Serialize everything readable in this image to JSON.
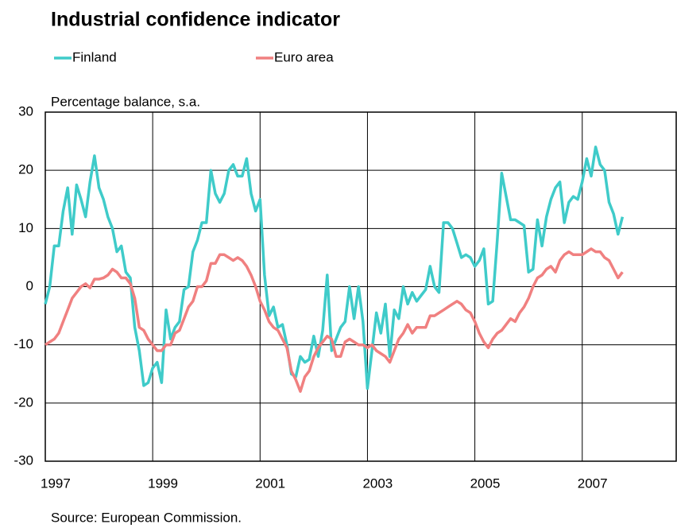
{
  "chart_data": {
    "type": "line",
    "title": "Industrial confidence indicator",
    "y_label": "Percentage balance, s.a.",
    "source": "Source: European Commission.",
    "x": [
      "1997-01",
      "1997-02",
      "1997-03",
      "1997-04",
      "1997-05",
      "1997-06",
      "1997-07",
      "1997-08",
      "1997-09",
      "1997-10",
      "1997-11",
      "1997-12",
      "1998-01",
      "1998-02",
      "1998-03",
      "1998-04",
      "1998-05",
      "1998-06",
      "1998-07",
      "1998-08",
      "1998-09",
      "1998-10",
      "1998-11",
      "1998-12",
      "1999-01",
      "1999-02",
      "1999-03",
      "1999-04",
      "1999-05",
      "1999-06",
      "1999-07",
      "1999-08",
      "1999-09",
      "1999-10",
      "1999-11",
      "1999-12",
      "2000-01",
      "2000-02",
      "2000-03",
      "2000-04",
      "2000-05",
      "2000-06",
      "2000-07",
      "2000-08",
      "2000-09",
      "2000-10",
      "2000-11",
      "2000-12",
      "2001-01",
      "2001-02",
      "2001-03",
      "2001-04",
      "2001-05",
      "2001-06",
      "2001-07",
      "2001-08",
      "2001-09",
      "2001-10",
      "2001-11",
      "2001-12",
      "2002-01",
      "2002-02",
      "2002-03",
      "2002-04",
      "2002-05",
      "2002-06",
      "2002-07",
      "2002-08",
      "2002-09",
      "2002-10",
      "2002-11",
      "2002-12",
      "2003-01",
      "2003-02",
      "2003-03",
      "2003-04",
      "2003-05",
      "2003-06",
      "2003-07",
      "2003-08",
      "2003-09",
      "2003-10",
      "2003-11",
      "2003-12",
      "2004-01",
      "2004-02",
      "2004-03",
      "2004-04",
      "2004-05",
      "2004-06",
      "2004-07",
      "2004-08",
      "2004-09",
      "2004-10",
      "2004-11",
      "2004-12",
      "2005-01",
      "2005-02",
      "2005-03",
      "2005-04",
      "2005-05",
      "2005-06",
      "2005-07",
      "2005-08",
      "2005-09",
      "2005-10",
      "2005-11",
      "2005-12",
      "2006-01",
      "2006-02",
      "2006-03",
      "2006-04",
      "2006-05",
      "2006-06",
      "2006-07",
      "2006-08",
      "2006-09",
      "2006-10",
      "2006-11",
      "2006-12",
      "2007-01",
      "2007-02",
      "2007-03",
      "2007-04",
      "2007-05",
      "2007-06",
      "2007-07",
      "2007-08",
      "2007-09",
      "2007-10"
    ],
    "series": [
      {
        "name": "Finland",
        "color": "#3fcbc9",
        "values": [
          -3,
          0,
          7,
          7,
          13,
          17,
          9,
          17.5,
          15,
          12,
          18,
          22.5,
          17,
          15,
          12,
          10,
          6,
          7,
          2.5,
          1.5,
          -7,
          -11,
          -17,
          -16.5,
          -14,
          -13,
          -16.5,
          -4,
          -9,
          -7,
          -6,
          -0.5,
          0,
          6,
          8,
          11,
          11,
          20,
          16,
          14.5,
          16,
          20,
          21,
          19,
          19,
          22,
          16,
          13,
          15,
          2,
          -5,
          -3.5,
          -7,
          -6.5,
          -10,
          -15,
          -15.5,
          -12,
          -13,
          -12.5,
          -8.5,
          -12,
          -7.5,
          2,
          -11,
          -9,
          -7,
          -6,
          0,
          -5.5,
          0,
          -6,
          -17.5,
          -11,
          -4.5,
          -8,
          -3,
          -12,
          -4,
          -5.5,
          0,
          -3,
          -1,
          -2.5,
          -1.5,
          -0.5,
          3.5,
          0,
          -1,
          11,
          11,
          10,
          7.5,
          5,
          5.5,
          5,
          3.5,
          4.5,
          6.5,
          -3,
          -2.5,
          8,
          19.5,
          15.5,
          11.5,
          11.5,
          11,
          10.5,
          2.5,
          3,
          11.5,
          7,
          12,
          15,
          17,
          18,
          11,
          14.5,
          15.5,
          15,
          18,
          22,
          19,
          24,
          21,
          20,
          14.5,
          12.5,
          9,
          12
        ]
      },
      {
        "name": "Euro area",
        "color": "#f08080",
        "values": [
          -10,
          -9.5,
          -9,
          -8,
          -6,
          -4,
          -2,
          -1,
          0,
          0.5,
          -0.2,
          1.3,
          1.3,
          1.5,
          2,
          3,
          2.5,
          1.5,
          1.5,
          0.5,
          -2,
          -7,
          -7.5,
          -9,
          -10,
          -11,
          -11,
          -10,
          -10,
          -8,
          -7.5,
          -5.5,
          -3.5,
          -2.5,
          0,
          0,
          1,
          4,
          4,
          5.5,
          5.5,
          5,
          4.5,
          5,
          4.5,
          3.5,
          2,
          0,
          -2.5,
          -4,
          -6,
          -7,
          -7.5,
          -9,
          -10.5,
          -14.5,
          -16,
          -18,
          -15.5,
          -14.5,
          -12,
          -10.5,
          -9.5,
          -8.5,
          -9,
          -12,
          -12,
          -9.5,
          -9,
          -9.5,
          -10,
          -10,
          -10.5,
          -10,
          -11,
          -11.5,
          -12,
          -13,
          -11,
          -9,
          -8,
          -6.5,
          -8,
          -7,
          -7,
          -7,
          -5,
          -5,
          -4.5,
          -4,
          -3.5,
          -3,
          -2.5,
          -3,
          -4,
          -4.5,
          -6,
          -8,
          -9.5,
          -10.5,
          -9,
          -8,
          -7.5,
          -6.5,
          -5.5,
          -6,
          -4.5,
          -3.5,
          -2,
          0,
          1.5,
          2,
          3,
          3.5,
          2.5,
          4.5,
          5.5,
          6,
          5.5,
          5.5,
          5.5,
          6,
          6.5,
          6,
          6,
          5,
          4.5,
          3,
          1.5,
          2.5
        ]
      }
    ],
    "xlim": [
      1997,
      2008.75
    ],
    "xticks": [
      1997,
      1999,
      2001,
      2003,
      2005,
      2007
    ],
    "ylim": [
      -30,
      30
    ],
    "yticks": [
      -30,
      -20,
      -10,
      0,
      10,
      20,
      30
    ],
    "grid": true
  }
}
